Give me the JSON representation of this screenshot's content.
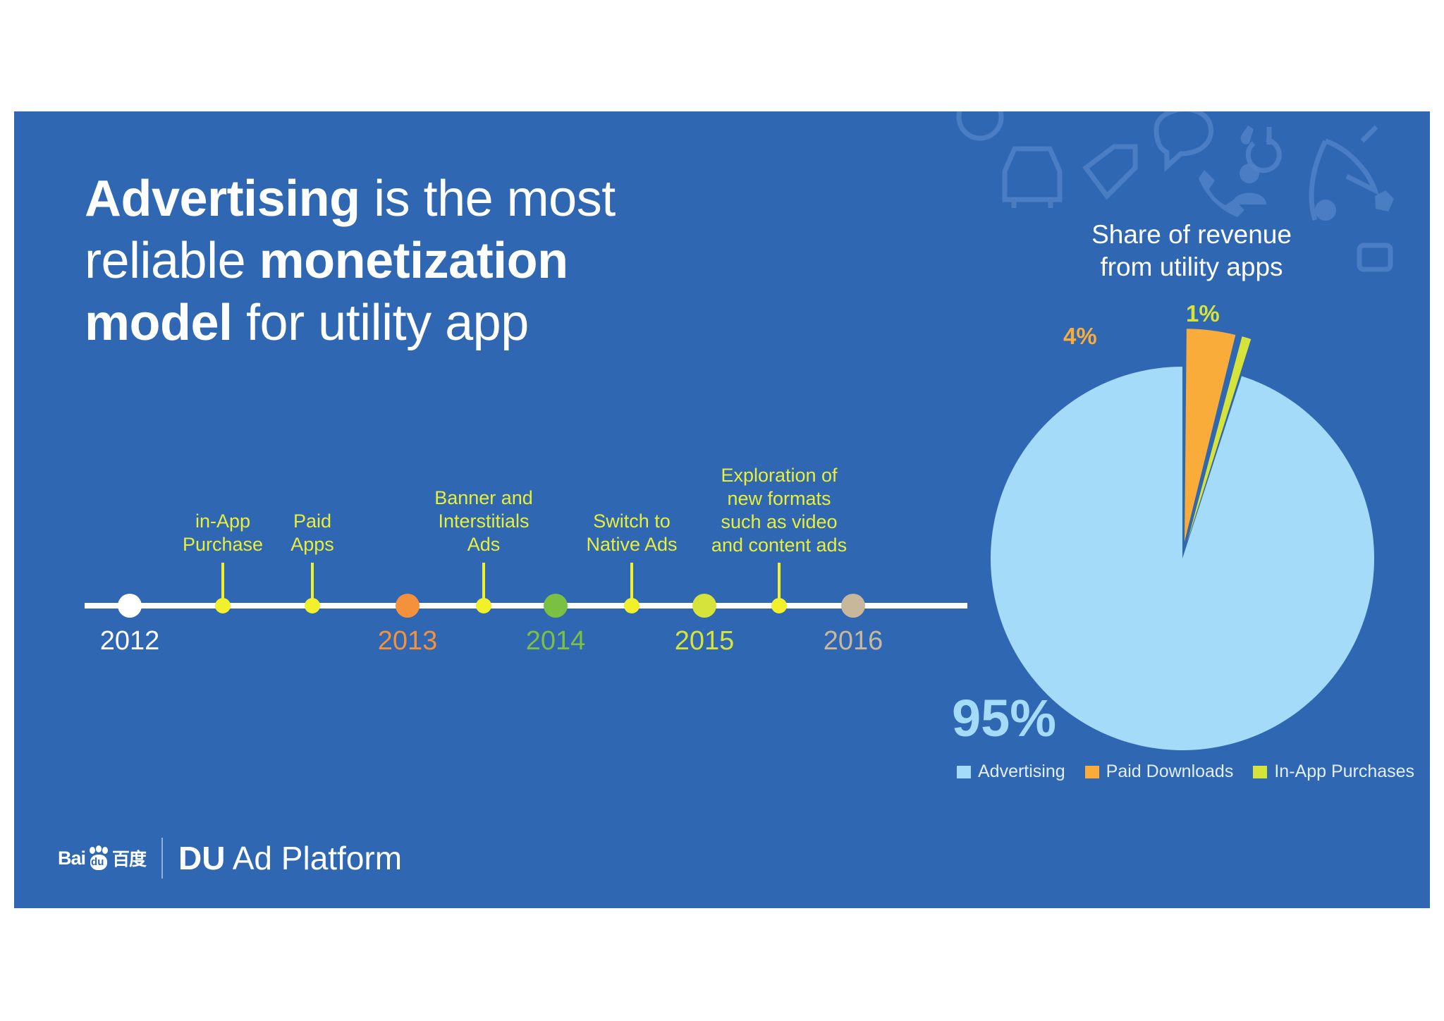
{
  "headline": {
    "line1_bold": "Advertising",
    "line1_rest": " is the most",
    "line2_pre": "reliable ",
    "line2_bold": "monetization",
    "line3_bold": "model",
    "line3_rest": " for utility app"
  },
  "timeline": {
    "years": [
      {
        "label": "2012",
        "color": "#ffffff"
      },
      {
        "label": "2013",
        "color": "#f5913a"
      },
      {
        "label": "2014",
        "color": "#79c043"
      },
      {
        "label": "2015",
        "color": "#d6e33a"
      },
      {
        "label": "2016",
        "color": "#c8b79b"
      }
    ],
    "milestones": [
      {
        "label": "in-App\nPurchase"
      },
      {
        "label": "Paid\nApps"
      },
      {
        "label": "Banner and\nInterstitials\nAds"
      },
      {
        "label": "Switch to\nNative Ads"
      },
      {
        "label": "Exploration of\nnew formats\nsuch as video\nand content ads"
      }
    ],
    "line_color": "#ffffff",
    "milestone_color": "#f2f02a"
  },
  "chart_data": {
    "type": "pie",
    "title": "Share of revenue\nfrom utility apps",
    "slices": [
      {
        "name": "Advertising",
        "value": 95,
        "label": "95%",
        "color": "#a4dbf8"
      },
      {
        "name": "Paid Downloads",
        "value": 4,
        "label": "4%",
        "color": "#f9ac3a"
      },
      {
        "name": "In-App Purchases",
        "value": 1,
        "label": "1%",
        "color": "#d6e33a"
      }
    ],
    "legend_position": "bottom"
  },
  "footer": {
    "baidu_left": "Bai",
    "baidu_mid": "du",
    "baidu_cn": "百度",
    "platform_bold": "DU",
    "platform_rest": " Ad Platform"
  }
}
